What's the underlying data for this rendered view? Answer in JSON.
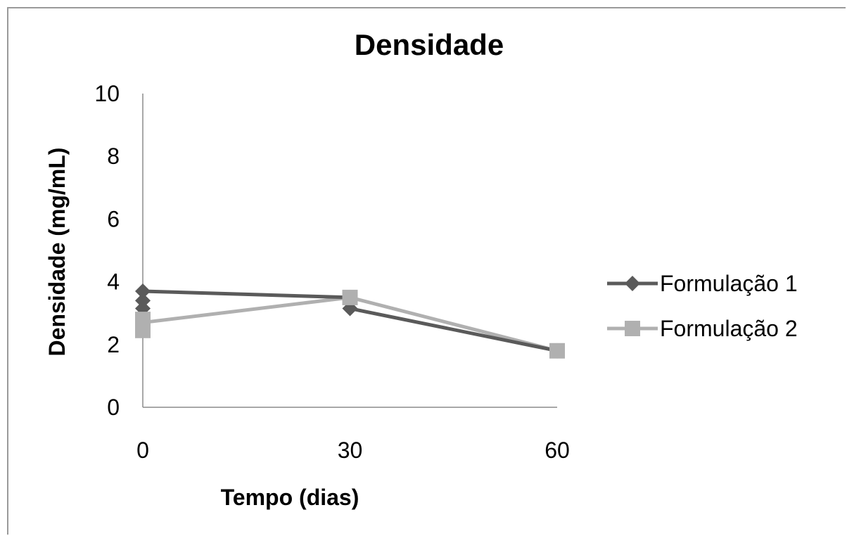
{
  "chart_data": {
    "type": "line",
    "title": "Densidade",
    "xlabel": "Tempo (dias)",
    "ylabel": "Densidade (mg/mL)",
    "x_categories": [
      "0",
      "30",
      "60"
    ],
    "ylim": [
      0,
      10
    ],
    "yticks": [
      0,
      2,
      4,
      6,
      8,
      10
    ],
    "grid": false,
    "legend_position": "right",
    "series": [
      {
        "name": "Formulação 1",
        "color": "#5a5a5a",
        "marker": "diamond",
        "points": [
          {
            "x": 0,
            "y": 3.7
          },
          {
            "x": 0,
            "y": 3.4
          },
          {
            "x": 0,
            "y": 3.15
          },
          {
            "x": 30,
            "y": 3.5
          },
          {
            "x": 30,
            "y": 3.15
          },
          {
            "x": 60,
            "y": 1.8
          }
        ],
        "line": [
          {
            "x": 0,
            "y": 3.7
          },
          {
            "x": 30,
            "y": 3.5
          },
          {
            "x": 30,
            "y": 3.15
          },
          {
            "x": 60,
            "y": 1.8
          }
        ]
      },
      {
        "name": "Formulação 2",
        "color": "#b0b0b0",
        "marker": "square",
        "points": [
          {
            "x": 0,
            "y": 2.8
          },
          {
            "x": 0,
            "y": 2.45
          },
          {
            "x": 30,
            "y": 3.5
          },
          {
            "x": 60,
            "y": 1.8
          }
        ],
        "line": [
          {
            "x": 0,
            "y": 2.7
          },
          {
            "x": 30,
            "y": 3.5
          },
          {
            "x": 60,
            "y": 1.8
          }
        ]
      }
    ]
  }
}
